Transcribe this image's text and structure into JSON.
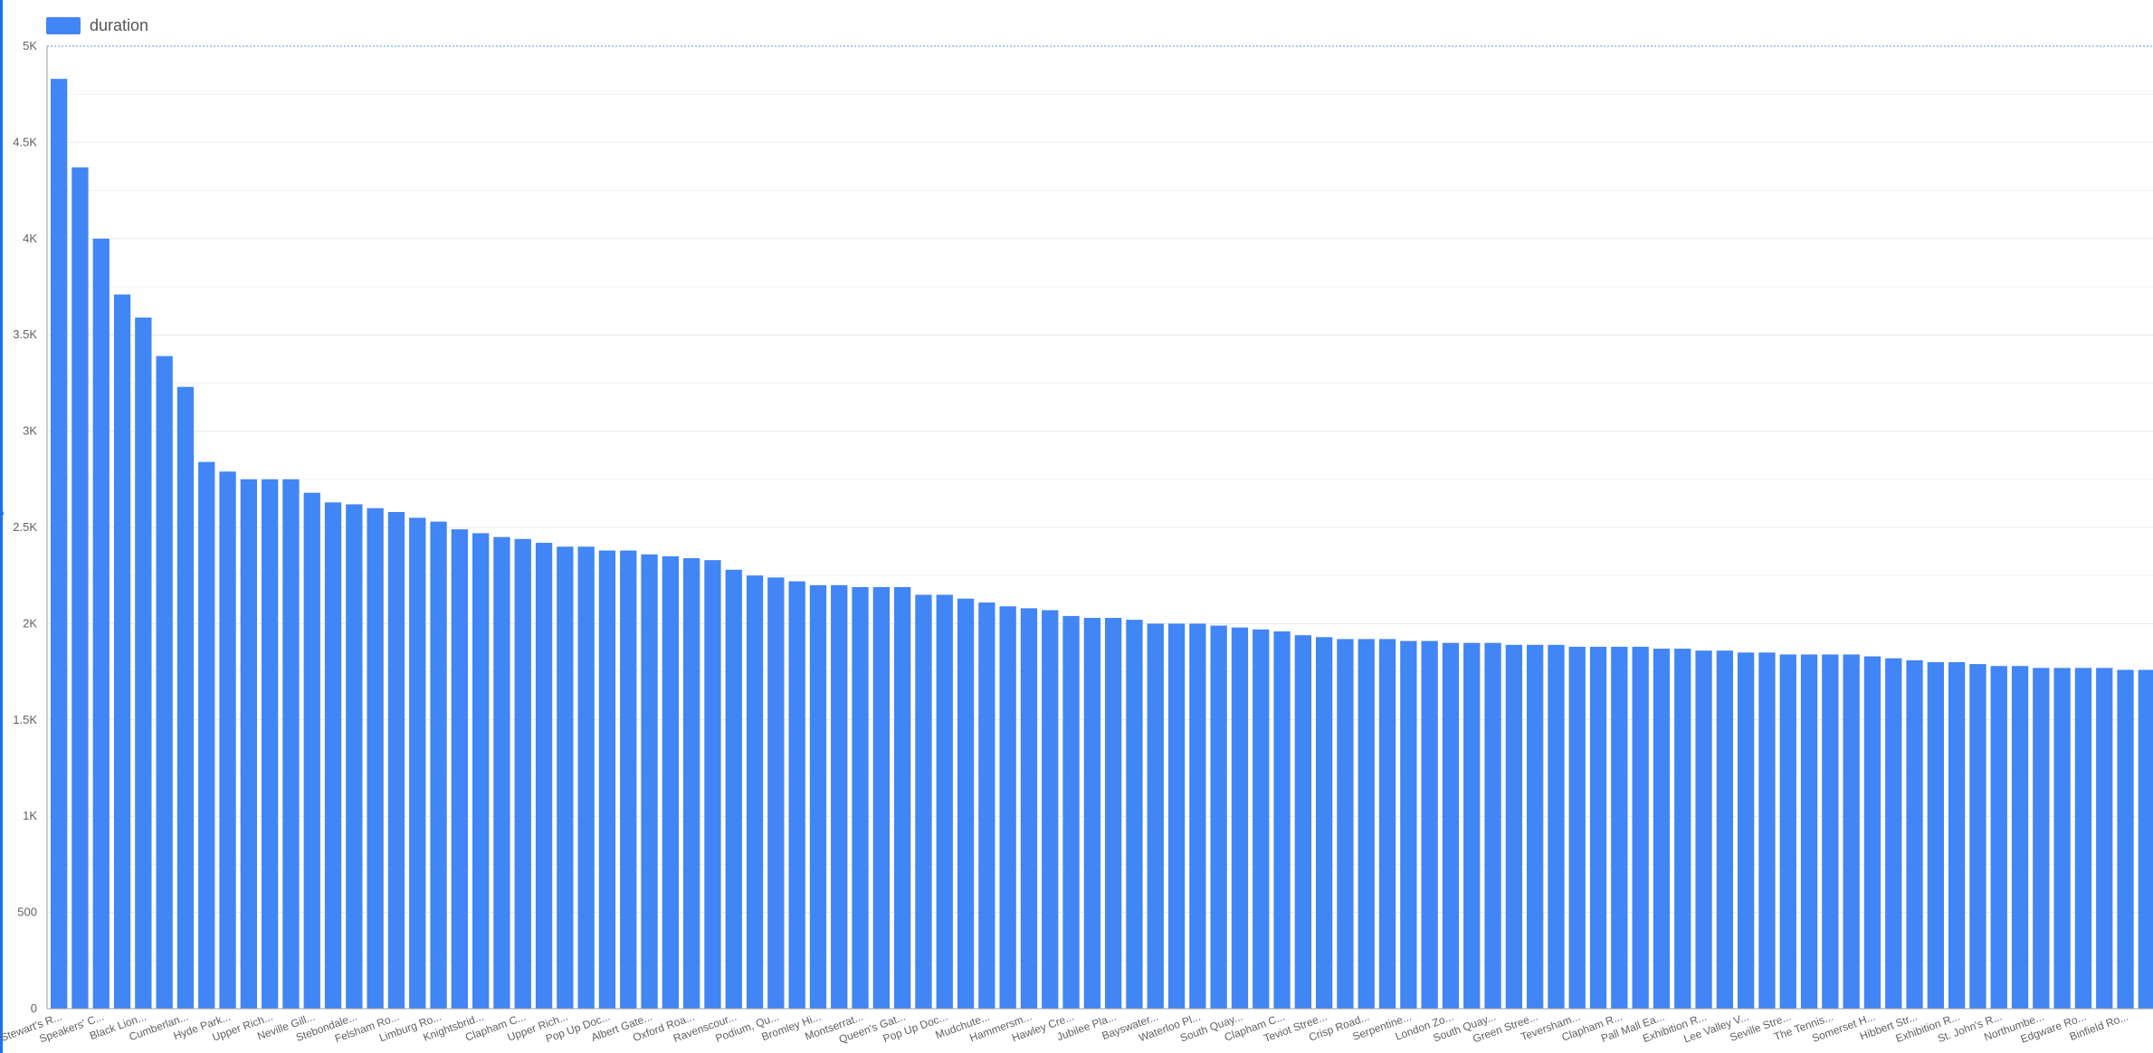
{
  "colors": {
    "bar": "#4285f4",
    "grid": "#e8e8e8",
    "axis": "#9e9e9e",
    "text": "#616161",
    "selection": "#1a73e8"
  },
  "legend": {
    "label": "duration"
  },
  "chart_data": {
    "type": "bar",
    "title": "",
    "xlabel": "",
    "ylabel": "",
    "ylim": [
      0,
      5000
    ],
    "yticks": [
      0,
      500,
      1000,
      1500,
      2000,
      2500,
      3000,
      3500,
      4000,
      4500,
      5000
    ],
    "ytick_labels": [
      "0",
      "500",
      "1K",
      "1.5K",
      "2K",
      "2.5K",
      "3K",
      "3.5K",
      "4K",
      "4.5K",
      "5K"
    ],
    "grid": true,
    "legend_position": "top-left",
    "series": [
      {
        "name": "duration",
        "values": [
          4830,
          4370,
          4000,
          3710,
          3590,
          3390,
          3230,
          2840,
          2790,
          2750,
          2750,
          2750,
          2680,
          2630,
          2620,
          2600,
          2580,
          2550,
          2530,
          2490,
          2470,
          2450,
          2440,
          2420,
          2400,
          2400,
          2380,
          2380,
          2360,
          2350,
          2340,
          2330,
          2280,
          2250,
          2240,
          2220,
          2200,
          2200,
          2190,
          2190,
          2190,
          2150,
          2150,
          2130,
          2110,
          2090,
          2080,
          2070,
          2040,
          2030,
          2030,
          2020,
          2000,
          2000,
          2000,
          1990,
          1980,
          1970,
          1960,
          1940,
          1930,
          1920,
          1920,
          1920,
          1910,
          1910,
          1900,
          1900,
          1900,
          1890,
          1890,
          1890,
          1880,
          1880,
          1880,
          1880,
          1870,
          1870,
          1860,
          1860,
          1850,
          1850,
          1840,
          1840,
          1840,
          1840,
          1830,
          1820,
          1810,
          1800,
          1800,
          1790,
          1780,
          1780,
          1770,
          1770,
          1770,
          1770,
          1760,
          1760
        ]
      }
    ],
    "category_labels": [
      "Stewart's R...",
      "Speakers' C...",
      "Black Lion...",
      "Cumberlan...",
      "Hyde Park...",
      "Upper Rich...",
      "Neville Gill...",
      "Stebondale...",
      "Felsham Ro...",
      "Limburg Ro...",
      "Knightsbrid...",
      "Clapham C...",
      "Upper Rich...",
      "Pop Up Doc...",
      "Albert Gate...",
      "Oxford Roa...",
      "Ravenscour...",
      "Podium, Qu...",
      "Bromley Hi...",
      "Montserrat...",
      "Queen's Gat...",
      "Pop Up Doc...",
      "Mudchute...",
      "Hammersm...",
      "Hawley Cre...",
      "Jubilee Pla...",
      "Bayswater...",
      "Waterloo Pl...",
      "South Quay...",
      "Clapham C...",
      "Teviot Stree...",
      "Crisp Road...",
      "Serpentine...",
      "London Zo...",
      "South Quay...",
      "Green Stree...",
      "Teversham...",
      "Clapham R...",
      "Pall Mall Ea...",
      "Exhibition R...",
      "Lee Valley V...",
      "Seville Stre...",
      "The Tennis...",
      "Somerset H...",
      "Hibbert Str...",
      "Exhibition R...",
      "St. John's R...",
      "Northumbe...",
      "Edgware Ro...",
      "Binfield Ro..."
    ]
  }
}
